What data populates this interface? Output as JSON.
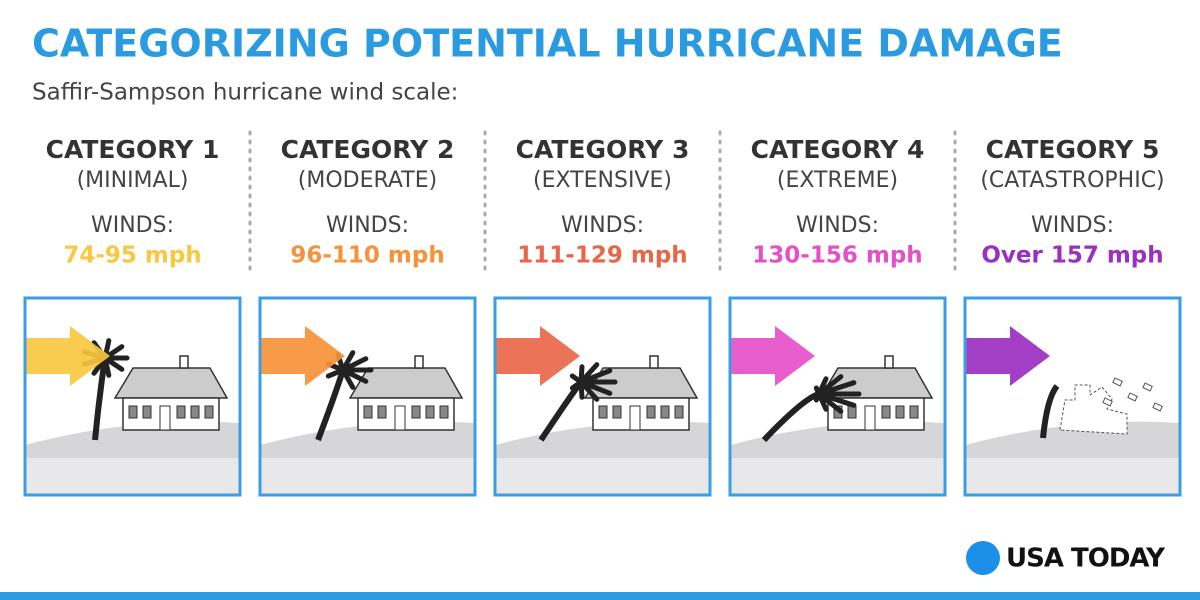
{
  "header": {
    "title": "CATEGORIZING POTENTIAL HURRICANE DAMAGE",
    "subtitle": "Saffir-Sampson hurricane wind scale:"
  },
  "categories": [
    {
      "name": "CATEGORY 1",
      "description": "(MINIMAL)",
      "winds_label": "WINDS:",
      "winds": "74-95 mph",
      "color": "#f9c740"
    },
    {
      "name": "CATEGORY 2",
      "description": "(MODERATE)",
      "winds_label": "WINDS:",
      "winds": "96-110 mph",
      "color": "#f7923a"
    },
    {
      "name": "CATEGORY 3",
      "description": "(EXTENSIVE)",
      "winds_label": "WINDS:",
      "winds": "111-129 mph",
      "color": "#e8674a"
    },
    {
      "name": "CATEGORY 4",
      "description": "(EXTREME)",
      "winds_label": "WINDS:",
      "winds": "130-156 mph",
      "color": "#e54fc7"
    },
    {
      "name": "CATEGORY 5",
      "description": "(CATASTROPHIC)",
      "winds_label": "WINDS:",
      "winds": "Over 157 mph",
      "color": "#9b2fc0"
    }
  ],
  "footer": {
    "logo": "USA TODAY"
  }
}
